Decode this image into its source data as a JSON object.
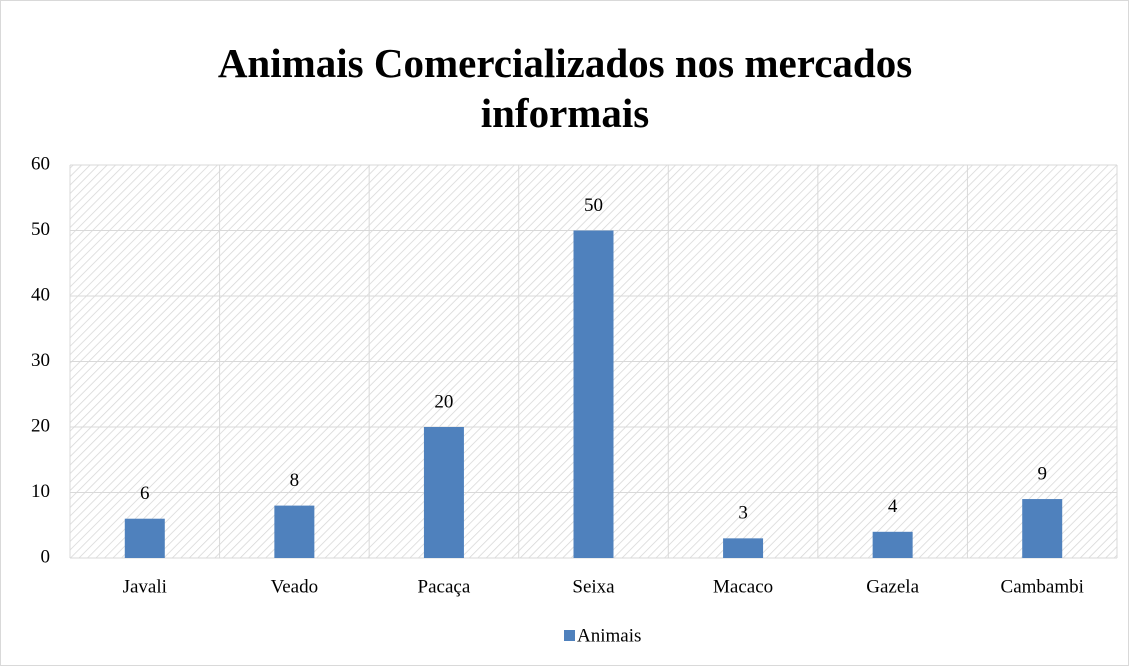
{
  "chart_data": {
    "type": "bar",
    "title": "Animais Comercializados nos mercados informais",
    "categories": [
      "Javali",
      "Veado",
      "Pacaça",
      "Seixa",
      "Macaco",
      "Gazela",
      "Cambambi"
    ],
    "series": [
      {
        "name": "Animais",
        "color": "#4f81bd",
        "values": [
          6,
          8,
          20,
          50,
          3,
          4,
          9
        ]
      }
    ],
    "ylim": [
      0,
      60
    ],
    "yticks": [
      0,
      10,
      20,
      30,
      40,
      50,
      60
    ],
    "grid": true,
    "legend": "bottom"
  }
}
